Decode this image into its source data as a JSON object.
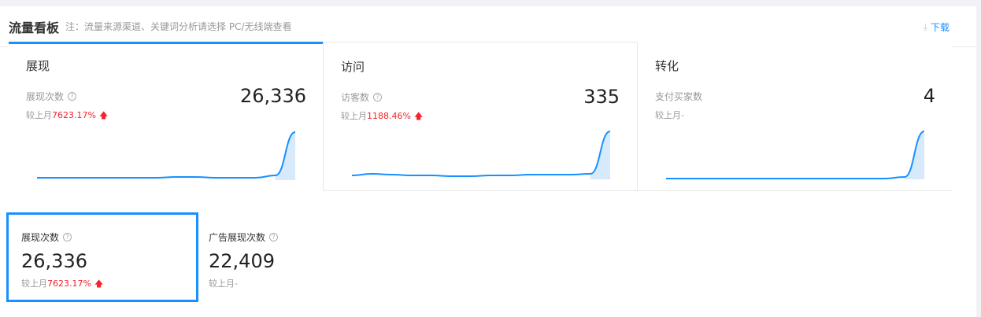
{
  "header": {
    "title": "流量看板",
    "note": "注：流量来源渠道、关键词分析请选择 PC/无线端查看",
    "download": "下载"
  },
  "tabs": [
    {
      "name": "展现",
      "metric": "展现次数",
      "value": "26,336",
      "compare_prefix": "较上月",
      "compare": "7623.17%",
      "trend": "up",
      "help": true,
      "spark": [
        2,
        2,
        2,
        2,
        2,
        2,
        2,
        3,
        3,
        2,
        2,
        2,
        5,
        60
      ]
    },
    {
      "name": "访问",
      "metric": "访客数",
      "value": "335",
      "compare_prefix": "较上月",
      "compare": "1188.46%",
      "trend": "up",
      "help": true,
      "spark": [
        4,
        6,
        5,
        4,
        4,
        3,
        3,
        4,
        4,
        5,
        5,
        5,
        6,
        60
      ]
    },
    {
      "name": "转化",
      "metric": "支付买家数",
      "value": "4",
      "compare_prefix": "较上月",
      "compare": "-",
      "trend": "none",
      "help": false,
      "spark": [
        0,
        0,
        0,
        0,
        0,
        0,
        0,
        0,
        0,
        0,
        0,
        0,
        2,
        60
      ]
    }
  ],
  "cards": [
    {
      "metric": "展现次数",
      "value": "26,336",
      "compare_prefix": "较上月",
      "compare": "7623.17%",
      "trend": "up"
    },
    {
      "metric": "广告展现次数",
      "value": "22,409",
      "compare_prefix": "较上月",
      "compare": "-",
      "trend": "none"
    }
  ],
  "colors": {
    "accent": "#1890ff",
    "up": "#f5222d"
  }
}
